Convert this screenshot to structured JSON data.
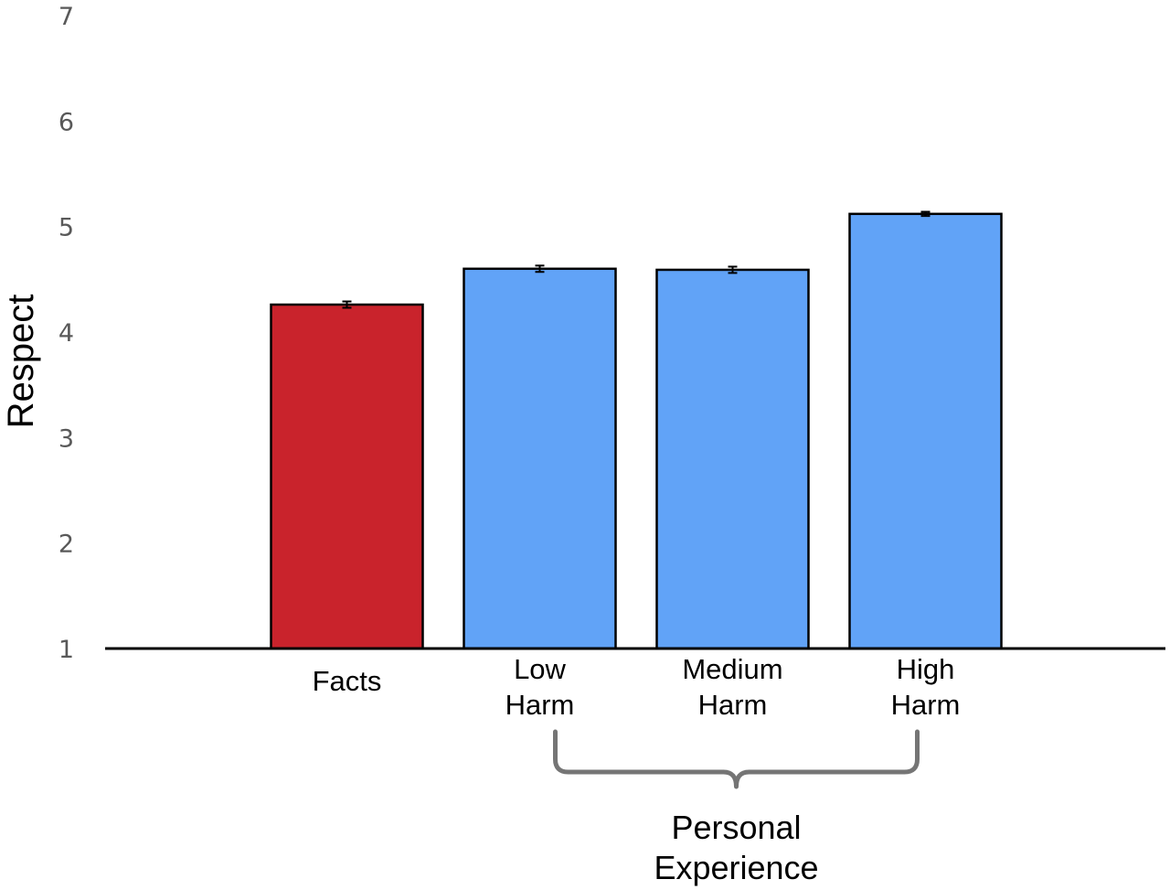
{
  "chart_data": {
    "type": "bar",
    "categories": [
      [
        "Facts"
      ],
      [
        "Low",
        "Harm"
      ],
      [
        "Medium",
        "Harm"
      ],
      [
        "High",
        "Harm"
      ]
    ],
    "values": [
      4.26,
      4.6,
      4.59,
      5.12
    ],
    "errors": [
      0.03,
      0.03,
      0.03,
      0.02
    ],
    "colors": [
      "#c9232c",
      "#61a3f7",
      "#61a3f7",
      "#61a3f7"
    ],
    "title": "",
    "xlabel": "",
    "ylabel": "Respect",
    "ylim": [
      1,
      7
    ],
    "yticks": [
      "1",
      "2",
      "3",
      "4",
      "5",
      "6",
      "7"
    ],
    "grid": false,
    "bracket": {
      "covers": [
        1,
        3
      ],
      "label": [
        "Personal",
        "Experience"
      ],
      "color": "#757575"
    }
  }
}
